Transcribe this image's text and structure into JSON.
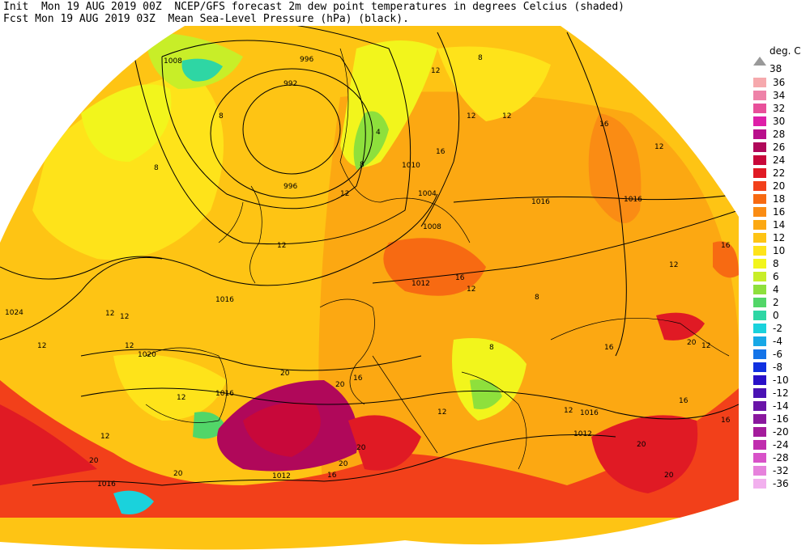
{
  "header": {
    "line1": "Init  Mon 19 AUG 2019 00Z  NCEP/GFS forecast 2m dew point temperatures in degrees Celcius (shaded)",
    "line2": "Fcst Mon 19 AUG 2019 03Z  Mean Sea-Level Pressure (hPa) (black)."
  },
  "legend": {
    "unit": "deg. C",
    "top_label": "38",
    "items": [
      {
        "label": "36",
        "color": "#f6a9ad"
      },
      {
        "label": "34",
        "color": "#ee82a8"
      },
      {
        "label": "32",
        "color": "#e8509a"
      },
      {
        "label": "30",
        "color": "#de1fa8"
      },
      {
        "label": "28",
        "color": "#b90f8c"
      },
      {
        "label": "26",
        "color": "#b0085a"
      },
      {
        "label": "24",
        "color": "#c8083a"
      },
      {
        "label": "22",
        "color": "#e01a24"
      },
      {
        "label": "20",
        "color": "#f2401a"
      },
      {
        "label": "18",
        "color": "#f76a12"
      },
      {
        "label": "16",
        "color": "#fa8c14"
      },
      {
        "label": "14",
        "color": "#fca812"
      },
      {
        "label": "12",
        "color": "#fec414"
      },
      {
        "label": "10",
        "color": "#fee31a"
      },
      {
        "label": "8",
        "color": "#f2f51c"
      },
      {
        "label": "6",
        "color": "#c8ee28"
      },
      {
        "label": "4",
        "color": "#8ee03c"
      },
      {
        "label": "2",
        "color": "#52d668"
      },
      {
        "label": "0",
        "color": "#2ed6a4"
      },
      {
        "label": "-2",
        "color": "#1ad2dc"
      },
      {
        "label": "-4",
        "color": "#18a8e6"
      },
      {
        "label": "-6",
        "color": "#1474e8"
      },
      {
        "label": "-8",
        "color": "#1030e0"
      },
      {
        "label": "-10",
        "color": "#2a10c8"
      },
      {
        "label": "-12",
        "color": "#4a12b4"
      },
      {
        "label": "-14",
        "color": "#6a14a8"
      },
      {
        "label": "-16",
        "color": "#8a189e"
      },
      {
        "label": "-20",
        "color": "#a41c9c"
      },
      {
        "label": "-24",
        "color": "#c02cae"
      },
      {
        "label": "-28",
        "color": "#d852c8"
      },
      {
        "label": "-32",
        "color": "#e682dc"
      },
      {
        "label": "-36",
        "color": "#f2b0ee"
      }
    ]
  },
  "isobar_labels": [
    "1008",
    "996",
    "992",
    "996",
    "1010",
    "1004",
    "1008",
    "1016",
    "1016",
    "1012",
    "1016",
    "1024",
    "1020",
    "1016",
    "1012",
    "1016",
    "1012",
    "1016"
  ],
  "field_labels": [
    "8",
    "8",
    "12",
    "16",
    "12",
    "12",
    "16",
    "12",
    "8",
    "4",
    "8",
    "12",
    "12",
    "12",
    "12",
    "16",
    "12",
    "16",
    "12",
    "12",
    "12",
    "12",
    "12",
    "12",
    "16",
    "16",
    "20",
    "20",
    "20",
    "20",
    "20",
    "20",
    "16",
    "20",
    "16",
    "12",
    "8",
    "8",
    "12",
    "20",
    "16",
    "20"
  ]
}
